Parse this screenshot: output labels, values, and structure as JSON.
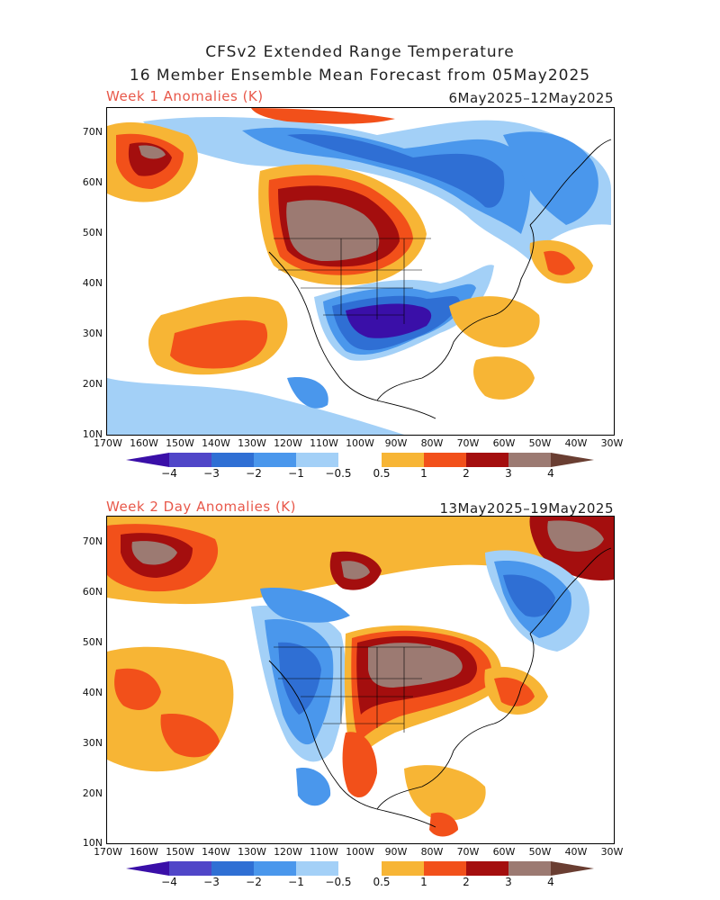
{
  "header": {
    "title_line1": "CFSv2 Extended Range Temperature",
    "title_line2": "16 Member Ensemble Mean Forecast from 05May2025"
  },
  "panels": [
    {
      "label": "Week 1 Anomalies (K)",
      "dates": "6May2025–12May2025"
    },
    {
      "label": "Week 2 Day Anomalies (K)",
      "dates": "13May2025–19May2025"
    }
  ],
  "axes": {
    "lat_labels": [
      "70N",
      "60N",
      "50N",
      "40N",
      "30N",
      "20N",
      "10N"
    ],
    "lon_labels": [
      "170W",
      "160W",
      "150W",
      "140W",
      "130W",
      "120W",
      "110W",
      "100W",
      "90W",
      "80W",
      "70W",
      "60W",
      "50W",
      "40W",
      "30W"
    ]
  },
  "colorbar": {
    "levels": [
      "−4",
      "−3",
      "−2",
      "−1",
      "−0.5",
      "0.5",
      "1",
      "2",
      "3",
      "4"
    ],
    "colors": [
      "#3a0fa8",
      "#5046c8",
      "#2f6fd4",
      "#4a97ec",
      "#a3d0f7",
      "#ffffff",
      "#f7b535",
      "#f2501a",
      "#a40e0e",
      "#9c7a72",
      "#6a3e32"
    ]
  },
  "map_legend_colors": {
    "cold_extreme": "#3a0fa8",
    "cold_strong": "#5046c8",
    "cold_moderate": "#2f6fd4",
    "cold_mild": "#4a97ec",
    "cold_weak": "#a3d0f7",
    "warm_weak": "#f7b535",
    "warm_mild": "#f2501a",
    "warm_moderate": "#a40e0e",
    "warm_strong": "#9c7a72",
    "warm_extreme": "#6a3e32"
  }
}
